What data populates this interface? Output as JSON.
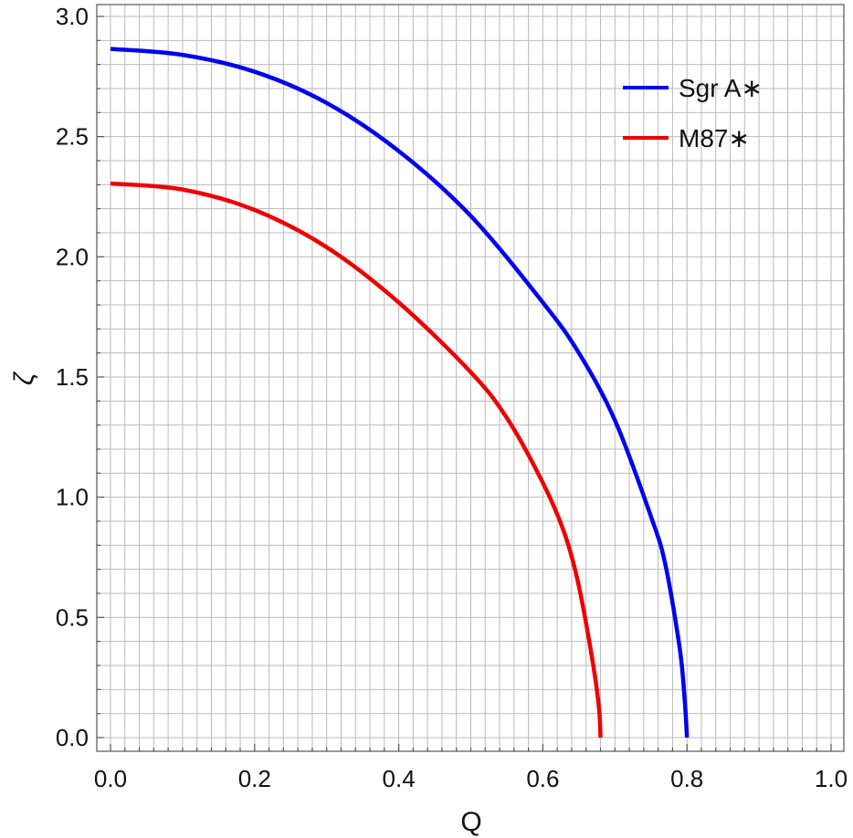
{
  "chart_data": {
    "type": "line",
    "title": "",
    "xlabel": "Q",
    "ylabel": "ζ",
    "xlim": [
      0.0,
      1.0
    ],
    "ylim": [
      -0.05,
      3.05
    ],
    "xticks": [
      0.0,
      0.2,
      0.4,
      0.6,
      0.8,
      1.0
    ],
    "xtick_labels": [
      "0.0",
      "0.2",
      "0.4",
      "0.6",
      "0.8",
      "1.0"
    ],
    "yticks": [
      0.0,
      0.5,
      1.0,
      1.5,
      2.0,
      2.5,
      3.0
    ],
    "ytick_labels": [
      "0.0",
      "0.5",
      "1.0",
      "1.5",
      "2.0",
      "2.5",
      "3.0"
    ],
    "grid": true,
    "legend_position": "top-right",
    "series": [
      {
        "name": "Sgr A∗",
        "color": "#0000ee",
        "points": [
          [
            0.0,
            2.865
          ],
          [
            0.1,
            2.84
          ],
          [
            0.2,
            2.77
          ],
          [
            0.3,
            2.64
          ],
          [
            0.4,
            2.44
          ],
          [
            0.5,
            2.17
          ],
          [
            0.6,
            1.81
          ],
          [
            0.65,
            1.6
          ],
          [
            0.7,
            1.32
          ],
          [
            0.75,
            0.92
          ],
          [
            0.77,
            0.72
          ],
          [
            0.79,
            0.37
          ],
          [
            0.797,
            0.15
          ],
          [
            0.8,
            0.0
          ]
        ]
      },
      {
        "name": "M87∗",
        "color": "#ee0000",
        "points": [
          [
            0.0,
            2.305
          ],
          [
            0.1,
            2.28
          ],
          [
            0.2,
            2.195
          ],
          [
            0.3,
            2.04
          ],
          [
            0.4,
            1.81
          ],
          [
            0.5,
            1.52
          ],
          [
            0.55,
            1.33
          ],
          [
            0.6,
            1.06
          ],
          [
            0.63,
            0.85
          ],
          [
            0.65,
            0.63
          ],
          [
            0.67,
            0.3
          ],
          [
            0.678,
            0.12
          ],
          [
            0.68,
            0.0
          ]
        ]
      }
    ]
  }
}
